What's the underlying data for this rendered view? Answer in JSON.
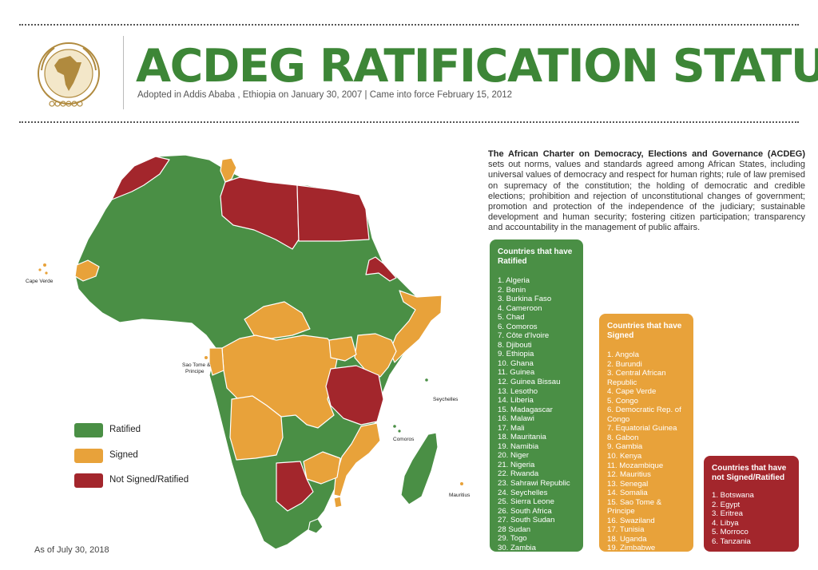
{
  "header": {
    "title": "ACDEG RATIFICATION STATUS",
    "subtitle": "Adopted in Addis Ababa , Ethiopia on January 30, 2007 | Came into force February 15, 2012"
  },
  "intro": {
    "lead": "The African Charter on Democracy, Elections and Governance (ACDEG)",
    "body": " sets out norms, values and standards agreed among African States, including universal values of democracy and respect for human rights; rule of law premised on supremacy of the constitution; the holding of democratic and credible elections; prohibition and rejection of unconstitutional changes of government; promotion and protection of the independence of the judiciary; sustainable development and human security; fostering citizen participation; transparency and accountability in the management of public affairs."
  },
  "colors": {
    "ratified": "#4a8f45",
    "signed": "#e8a23a",
    "not_signed": "#a3262c",
    "title": "#3d8637"
  },
  "ratified": {
    "heading": "Countries that have Ratified",
    "items": [
      "1. Algeria",
      "2. Benin",
      "3. Burkina Faso",
      "4. Cameroon",
      "5. Chad",
      "6. Comoros",
      "7. Côte d'Ivoire",
      "8. Djibouti",
      "9. Ethiopia",
      "10. Ghana",
      "11. Guinea",
      "12. Guinea Bissau",
      "13. Lesotho",
      "14. Liberia",
      "15. Madagascar",
      "16. Malawi",
      "17. Mali",
      "18. Mauritania",
      "19. Namibia",
      "20. Niger",
      "21. Nigeria",
      "22. Rwanda",
      "23. Sahrawi Republic",
      "24. Seychelles",
      "25. Sierra Leone",
      "26. South Africa",
      "27. South Sudan",
      "28 Sudan",
      "29. Togo",
      "30. Zambia"
    ]
  },
  "signed": {
    "heading": "Countries that have Signed",
    "items": [
      "1. Angola",
      "2. Burundi",
      "3. Central African Republic",
      "4. Cape Verde",
      "5. Congo",
      "6. Democratic Rep. of Congo",
      "7. Equatorial Guinea",
      "8. Gabon",
      "9. Gambia",
      "10. Kenya",
      "11. Mozambique",
      "12. Mauritius",
      "13. Senegal",
      "14. Somalia",
      "15. Sao Tome & Principe",
      "16. Swaziland",
      "17. Tunisia",
      "18. Uganda",
      "19. Zimbabwe"
    ]
  },
  "not_signed": {
    "heading": "Countries that have not Signed/Ratified",
    "items": [
      "1. Botswana",
      "2. Egypt",
      "3. Eritrea",
      "4. Libya",
      "5. Morroco",
      "6. Tanzania"
    ]
  },
  "legend": {
    "ratified": "Ratified",
    "signed": "Signed",
    "not_signed": "Not Signed/Ratified"
  },
  "map_labels": {
    "cape_verde": "Cape Verde",
    "sao_tome": "Sao Tome &",
    "principe": "Principe",
    "seychelles": "Seychelles",
    "comoros": "Comoros",
    "mauritius": "Mauritius"
  },
  "footer": {
    "as_of": "As of July 30, 2018"
  }
}
